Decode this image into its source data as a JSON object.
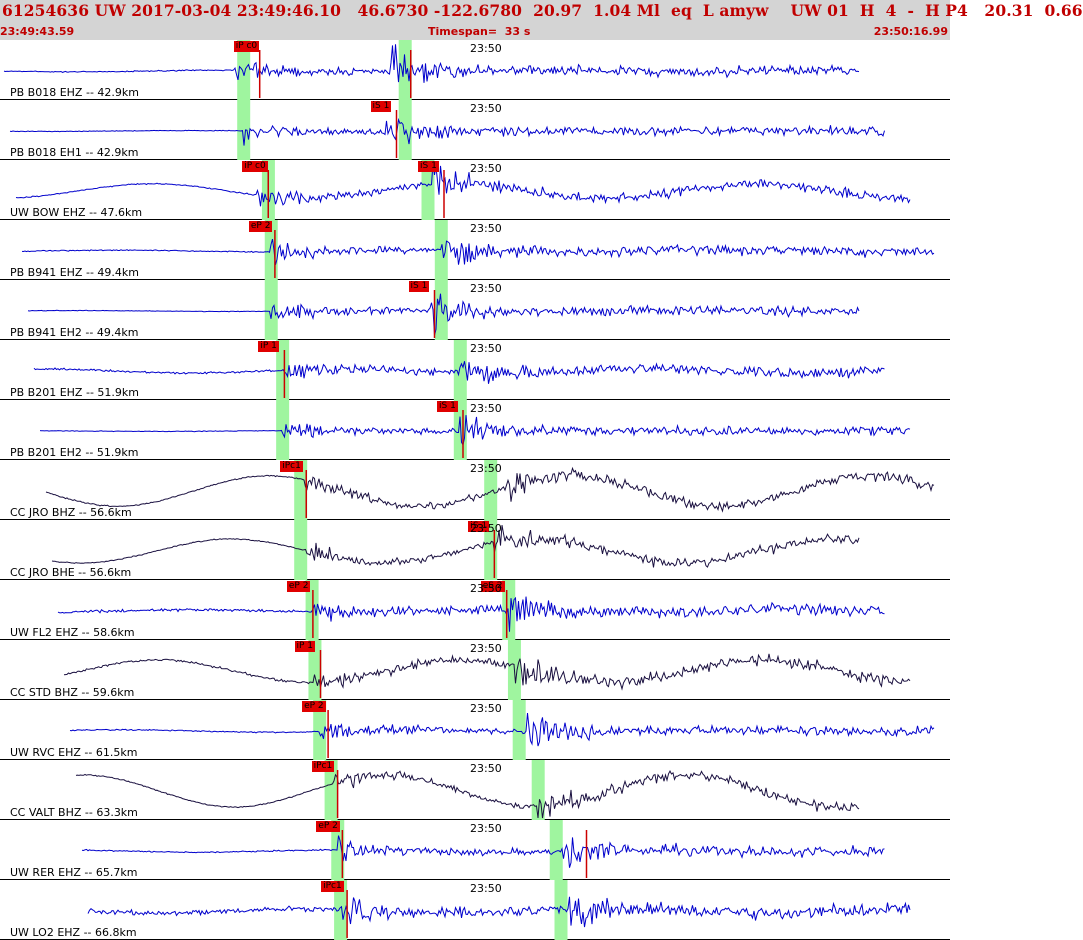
{
  "header": {
    "title": "61254636 UW 2017-03-04 23:49:46.10   46.6730 -122.6780  20.97  1.04 Ml  eq  L amyw    UW 01  H  4  -  H P4   20.31  0.66",
    "start_time": "23:49:43.59",
    "timespan": "Timespan=  33 s",
    "end_time": "23:50:16.99"
  },
  "colors": {
    "header_bg": "#d4d4d4",
    "header_text": "#c00000",
    "trace_blue": "#0000cc",
    "trace_dark": "#1a1040",
    "pick_flag": "#e00000",
    "pick_window": "#9ff59f"
  },
  "time_marker": "23:50",
  "traces": [
    {
      "label": "PB B018 EHZ -- 42.9km",
      "color": "blue",
      "picks": [
        {
          "text": "iP c0",
          "t": 0.246
        },
        {
          "text": "",
          "t": 0.405
        }
      ],
      "windows": [
        0.256,
        0.426
      ],
      "noise": 0.1,
      "wave": 0.02,
      "p": 0.246,
      "s": 0.41
    },
    {
      "label": "PB B018 EH1 -- 42.9km",
      "color": "blue",
      "picks": [
        {
          "text": "iS 1",
          "t": 0.39
        }
      ],
      "windows": [
        0.256,
        0.426
      ],
      "noise": 0.06,
      "wave": 0.01,
      "p": 0.256,
      "s": 0.405
    },
    {
      "label": "UW BOW EHZ -- 47.6km",
      "color": "blue",
      "picks": [
        {
          "text": "iP c0",
          "t": 0.255
        },
        {
          "text": "iS 1",
          "t": 0.44
        }
      ],
      "windows": [
        0.282,
        0.45
      ],
      "noise": 0.1,
      "wave": 0.18,
      "p": 0.27,
      "s": 0.455
    },
    {
      "label": "PB B941 EHZ -- 49.4km",
      "color": "blue",
      "picks": [
        {
          "text": "eP 2",
          "t": 0.262
        }
      ],
      "windows": [
        0.285,
        0.464
      ],
      "noise": 0.1,
      "wave": 0.02,
      "p": 0.285,
      "s": 0.464
    },
    {
      "label": "PB B941 EH2 -- 49.4km",
      "color": "blue",
      "picks": [
        {
          "text": "iS 1",
          "t": 0.43
        }
      ],
      "windows": [
        0.285,
        0.464
      ],
      "noise": 0.06,
      "wave": 0.01,
      "p": 0.285,
      "s": 0.452
    },
    {
      "label": "PB B201 EHZ -- 51.9km",
      "color": "blue",
      "picks": [
        {
          "text": "iP 1",
          "t": 0.272
        }
      ],
      "windows": [
        0.297,
        0.484
      ],
      "noise": 0.18,
      "wave": 0.05,
      "p": 0.297,
      "s": 0.484
    },
    {
      "label": "PB B201 EH2 -- 51.9km",
      "color": "blue",
      "picks": [
        {
          "text": "iS 1",
          "t": 0.46
        }
      ],
      "windows": [
        0.297,
        0.484
      ],
      "noise": 0.06,
      "wave": 0.01,
      "p": 0.297,
      "s": 0.484
    },
    {
      "label": "CC JRO BHZ -- 56.6km",
      "color": "dark",
      "picks": [
        {
          "text": "iPc1",
          "t": 0.295
        }
      ],
      "windows": [
        0.316,
        0.516
      ],
      "noise": 0.1,
      "wave": 0.38,
      "p": 0.32,
      "s": 0.53
    },
    {
      "label": "CC JRO BHE -- 56.6km",
      "color": "dark",
      "picks": [
        {
          "text": "iS 1",
          "t": 0.493
        }
      ],
      "windows": [
        0.316,
        0.516
      ],
      "noise": 0.1,
      "wave": 0.3,
      "p": 0.32,
      "s": 0.52
    },
    {
      "label": "UW FL2 EHZ -- 58.6km",
      "color": "blue",
      "picks": [
        {
          "text": "eP 2",
          "t": 0.302
        },
        {
          "text": "eS 2",
          "t": 0.506
        }
      ],
      "windows": [
        0.328,
        0.535
      ],
      "noise": 0.25,
      "wave": 0.03,
      "p": 0.328,
      "s": 0.535
    },
    {
      "label": "CC STD BHZ -- 59.6km",
      "color": "dark",
      "picks": [
        {
          "text": "iP 1",
          "t": 0.31
        }
      ],
      "windows": [
        0.331,
        0.541
      ],
      "noise": 0.22,
      "wave": 0.28,
      "p": 0.331,
      "s": 0.541
    },
    {
      "label": "UW RVC EHZ -- 61.5km",
      "color": "blue",
      "picks": [
        {
          "text": "eP 2",
          "t": 0.318
        }
      ],
      "windows": [
        0.336,
        0.546
      ],
      "noise": 0.12,
      "wave": 0.03,
      "p": 0.336,
      "s": 0.555
    },
    {
      "label": "CC VALT BHZ -- 63.3km",
      "color": "dark",
      "picks": [
        {
          "text": "iPc1",
          "t": 0.328
        }
      ],
      "windows": [
        0.348,
        0.566
      ],
      "noise": 0.1,
      "wave": 0.4,
      "p": 0.35,
      "s": 0.566
    },
    {
      "label": "UW RER EHZ -- 65.7km",
      "color": "blue",
      "picks": [
        {
          "text": "eP 2",
          "t": 0.333
        },
        {
          "text": "",
          "t": 0.59
        }
      ],
      "windows": [
        0.355,
        0.585
      ],
      "noise": 0.12,
      "wave": 0.03,
      "p": 0.355,
      "s": 0.59
    },
    {
      "label": "UW LO2 EHZ -- 66.8km",
      "color": "blue",
      "picks": [
        {
          "text": "iPc1",
          "t": 0.338
        }
      ],
      "windows": [
        0.358,
        0.59
      ],
      "noise": 0.45,
      "wave": 0.05,
      "p": 0.36,
      "s": 0.598
    }
  ]
}
